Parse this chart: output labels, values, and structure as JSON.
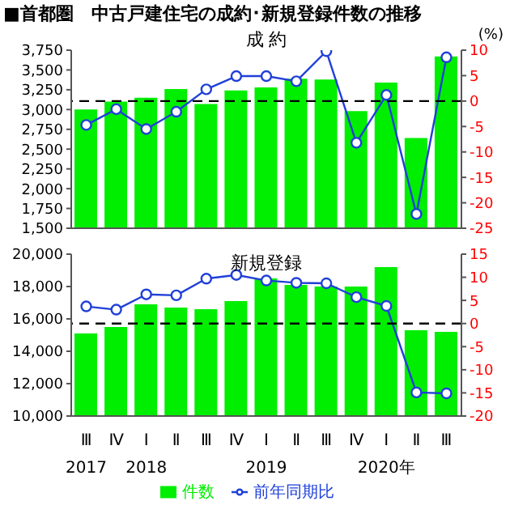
{
  "chart_data": [
    {
      "type": "bar",
      "title": "■首都圏　中古戸建住宅の成約･新規登録件数の推移",
      "subtitle": "成 約",
      "y2label": "(%)",
      "categories": [
        null,
        null,
        null,
        null,
        null,
        null,
        null,
        null,
        null,
        null,
        null,
        null,
        null
      ],
      "series": [
        {
          "color": "#00ee00",
          "values": [
            3000,
            3100,
            3150,
            3260,
            3070,
            3240,
            3280,
            3390,
            3380,
            2980,
            3340,
            2640,
            3670
          ]
        },
        {
          "type": "line",
          "axis": "y2",
          "color": "#2040d8",
          "values": [
            -4.7,
            -1.6,
            -5.5,
            -2.1,
            2.3,
            4.9,
            4.9,
            3.9,
            9.8,
            -8.2,
            1.2,
            -22.2,
            8.6
          ]
        }
      ],
      "ylim": [
        1500,
        3750
      ],
      "yticks": [
        {
          "value": 1500,
          "label": "1,500"
        },
        {
          "value": 1750,
          "label": "1,750"
        },
        {
          "value": 2000,
          "label": "2,000"
        },
        {
          "value": 2250,
          "label": "2,250"
        },
        {
          "value": 2500,
          "label": "2,500"
        },
        {
          "value": 2750,
          "label": "2,750"
        },
        {
          "value": 3000,
          "label": "3,000"
        },
        {
          "value": 3250,
          "label": "3,250"
        },
        {
          "value": 3500,
          "label": "3,500"
        },
        {
          "value": 3750,
          "label": "3,750"
        }
      ],
      "y2lim": [
        -25,
        10
      ],
      "y2ticks": [
        -25,
        -20,
        -15,
        -10,
        -5,
        0,
        5,
        10
      ],
      "ref_lines": [
        {
          "axis": "y2",
          "value": 0,
          "color": "#000000",
          "line_style": "dashed"
        }
      ],
      "marker": "circle",
      "tick_labels": "y",
      "legend": false,
      "grid": false
    },
    {
      "type": "bar",
      "subtitle": "新規登録",
      "categories": [
        "Ⅲ\n2017",
        "Ⅳ",
        "Ⅰ\n2018",
        "Ⅱ",
        "Ⅲ",
        "Ⅳ",
        "Ⅰ\n2019",
        "Ⅱ",
        "Ⅲ",
        "Ⅳ",
        "Ⅰ\n2020年",
        "Ⅱ",
        "Ⅲ"
      ],
      "series": [
        {
          "name": "件数",
          "color": "#00ee00",
          "values": [
            15100,
            15500,
            16900,
            16700,
            16600,
            17100,
            18500,
            18100,
            18000,
            18000,
            19200,
            15300,
            15200
          ]
        },
        {
          "type": "line",
          "name": "前年同期比",
          "axis": "y2",
          "color": "#2040d8",
          "values": [
            3.7,
            3.0,
            6.3,
            6.1,
            9.7,
            10.5,
            9.3,
            8.8,
            8.7,
            5.7,
            3.8,
            -14.9,
            -15.1
          ]
        }
      ],
      "ylim": [
        10000,
        20000
      ],
      "yticks": [
        {
          "value": 10000,
          "label": "10,000"
        },
        {
          "value": 12000,
          "label": "12,000"
        },
        {
          "value": 14000,
          "label": "14,000"
        },
        {
          "value": 16000,
          "label": "16,000"
        },
        {
          "value": 18000,
          "label": "18,000"
        },
        {
          "value": 20000,
          "label": "20,000"
        }
      ],
      "y2lim": [
        -20,
        15
      ],
      "y2ticks": [
        -20,
        -15,
        -10,
        -5,
        0,
        5,
        10,
        15
      ],
      "ref_lines": [
        {
          "axis": "y2",
          "value": 0,
          "color": "#000000",
          "line_style": "dashed"
        }
      ],
      "marker": "circle",
      "legend": "bottom",
      "grid": false
    }
  ]
}
